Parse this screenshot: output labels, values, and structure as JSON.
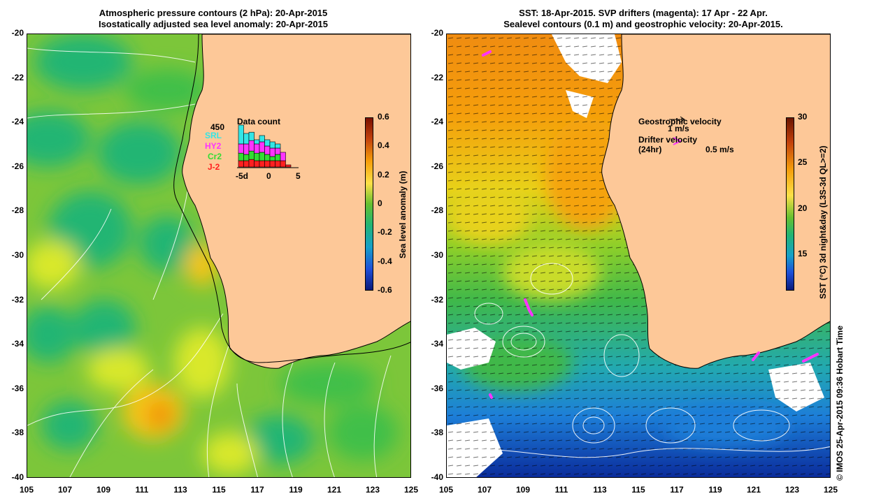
{
  "left_panel": {
    "title_line1": "Atmospheric pressure contours (2 hPa): 20-Apr-2015",
    "title_line2": "Isostatically adjusted sea level anomaly: 20-Apr-2015",
    "colorbar": {
      "title": "Sea level anomaly (m)",
      "ticks": [
        "0.6",
        "0.4",
        "0.2",
        "0",
        "-0.2",
        "-0.4",
        "-0.6"
      ]
    },
    "data_count": {
      "title": "Data count",
      "max_label": "450",
      "satellites": [
        {
          "name": "SRL",
          "color": "#33e6e6"
        },
        {
          "name": "HY2",
          "color": "#ff33ff"
        },
        {
          "name": "Cr2",
          "color": "#33dd33"
        },
        {
          "name": "J-2",
          "color": "#ff2020"
        }
      ],
      "x_ticks": [
        "-5d",
        "0",
        "5"
      ],
      "bars": [
        {
          "J-2": 0.15,
          "Cr2": 0.18,
          "HY2": 0.22,
          "SRL": 0.45
        },
        {
          "J-2": 0.15,
          "Cr2": 0.15,
          "HY2": 0.25,
          "SRL": 0.25
        },
        {
          "J-2": 0.18,
          "Cr2": 0.2,
          "HY2": 0.25,
          "SRL": 0.2
        },
        {
          "J-2": 0.15,
          "Cr2": 0.18,
          "HY2": 0.22,
          "SRL": 0.1
        },
        {
          "J-2": 0.15,
          "Cr2": 0.2,
          "HY2": 0.25,
          "SRL": 0.15
        },
        {
          "J-2": 0.15,
          "Cr2": 0.15,
          "HY2": 0.2,
          "SRL": 0.15
        },
        {
          "J-2": 0.15,
          "Cr2": 0.1,
          "HY2": 0.2,
          "SRL": 0.15
        },
        {
          "J-2": 0.15,
          "Cr2": 0.15,
          "HY2": 0.15,
          "SRL": 0.1
        },
        {
          "J-2": 0.15,
          "Cr2": 0.0,
          "HY2": 0.2,
          "SRL": 0.0
        },
        {
          "J-2": 0.05,
          "Cr2": 0.0,
          "HY2": 0.0,
          "SRL": 0.0
        }
      ]
    }
  },
  "right_panel": {
    "title_line1": "SST: 18-Apr-2015. SVP drifters (magenta): 17 Apr - 22 Apr.",
    "title_line2": "Sealevel contours (0.1 m) and geostrophic velocity: 20-Apr-2015.",
    "colorbar": {
      "title": "SST (°C) 3d night&day (L3S-3d QL>=2)",
      "ticks": [
        "30",
        "25",
        "20",
        "15"
      ]
    },
    "legend": {
      "geostrophic_label": "Geostrophic velocity",
      "geostrophic_scale": "1 m/s",
      "drifter_label_line1": "Drifter velocity",
      "drifter_label_line2": "(24hr)",
      "drifter_scale": "0.5 m/s",
      "drifter_color": "#ff33ff"
    }
  },
  "axes": {
    "lat_ticks": [
      "-20",
      "-22",
      "-24",
      "-26",
      "-28",
      "-30",
      "-32",
      "-34",
      "-36",
      "-38",
      "-40"
    ],
    "lon_ticks": [
      "105",
      "107",
      "109",
      "111",
      "113",
      "115",
      "117",
      "119",
      "121",
      "123",
      "125"
    ],
    "lat_range": [
      -40,
      -20
    ],
    "lon_range": [
      105,
      125
    ]
  },
  "colors": {
    "land": "#fdc898",
    "coastline": "#000000",
    "contour": "#ffffff"
  },
  "credit": "© IMOS 25-Apr-2015 09:36 Hobart Time"
}
